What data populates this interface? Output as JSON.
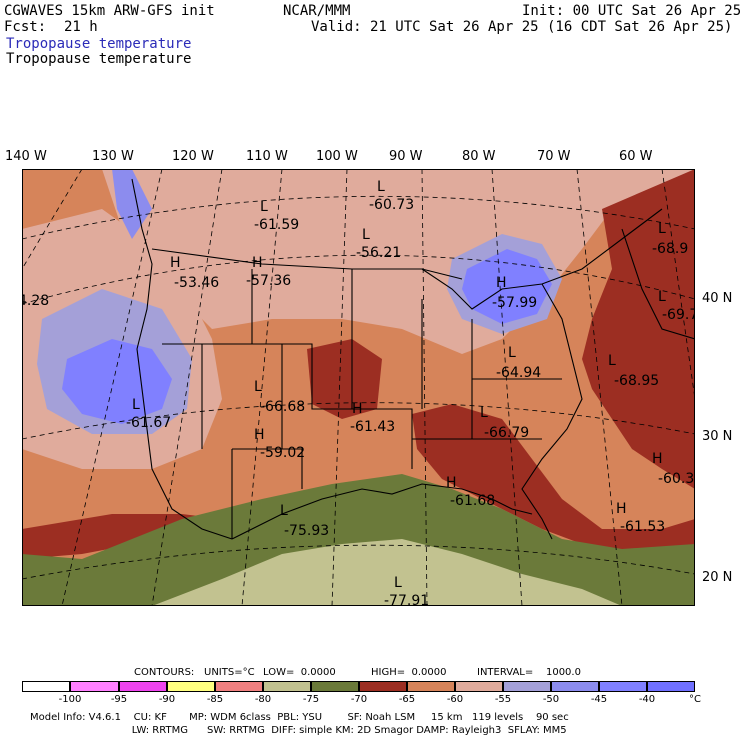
{
  "header": {
    "model": "CGWAVES 15km ARW-GFS init",
    "org": "NCAR/MMM",
    "init": "Init: 00 UTC Sat 26 Apr 25",
    "fcst_label": "Fcst:",
    "fcst_value": "21 h",
    "valid": "Valid: 21 UTC Sat 26 Apr 25 (16 CDT Sat 26 Apr 25)",
    "field_title": "Tropopause temperature",
    "field_subtitle": "Tropopause temperature"
  },
  "longitude_labels": [
    "140 W",
    "130 W",
    "120 W",
    "110 W",
    "100 W",
    "90 W",
    "80 W",
    "70 W",
    "60 W"
  ],
  "latitude_labels": [
    "40 N",
    "30 N",
    "20 N"
  ],
  "map_labels": [
    {
      "type": "L",
      "value": "-61.59"
    },
    {
      "type": "L",
      "value": "-60.73"
    },
    {
      "type": "L",
      "value": "-56.21"
    },
    {
      "type": "H",
      "value": "-53.46"
    },
    {
      "type": "H",
      "value": "-57.36"
    },
    {
      "type": "H",
      "value": "-57.99"
    },
    {
      "type": "L",
      "value": "-68.9"
    },
    {
      "type": "L",
      "value": "-69.7"
    },
    {
      "type": "L",
      "value": "-64.94"
    },
    {
      "type": "L",
      "value": "-68.95"
    },
    {
      "type": "L",
      "value": "-61.67"
    },
    {
      "type": "L",
      "value": "-66.68"
    },
    {
      "type": "H",
      "value": "-61.43"
    },
    {
      "type": "L",
      "value": "-66.79"
    },
    {
      "type": "H",
      "value": "-59.02"
    },
    {
      "type": "H",
      "value": "-60.3"
    },
    {
      "type": "H",
      "value": "-61.68"
    },
    {
      "type": "H",
      "value": "-61.53"
    },
    {
      "type": "L",
      "value": "-75.93"
    },
    {
      "type": "L",
      "value": "-77.91"
    },
    {
      "type": "",
      "value": "4.28"
    }
  ],
  "colors": {
    "lt_m100": "#ffffff",
    "m100_m95": "#ff80ff",
    "m95_m90": "#ee44ee",
    "m90_m85": "#ffff80",
    "m85_m80": "#f08080",
    "m80_m75": "#c2c290",
    "m75_m70": "#6b7a3a",
    "m70_m65": "#9c2e22",
    "m65_m60": "#d6845a",
    "m60_m55": "#e0ab9c",
    "m55_m50": "#a4a0d8",
    "m50_m45": "#8c8cee",
    "m45_m40": "#8080ff",
    "gt_m40": "#7070ff"
  },
  "contours": {
    "label": "CONTOURS:",
    "units": "UNITS=°C",
    "low": "LOW=  0.0000",
    "high": "HIGH=  0.0000",
    "interval": "INTERVAL=    1000.0"
  },
  "colorbar": {
    "tick_labels": [
      "-100",
      "-95",
      "-90",
      "-85",
      "-80",
      "-75",
      "-70",
      "-65",
      "-60",
      "-55",
      "-50",
      "-45",
      "-40"
    ],
    "unit": "°C"
  },
  "footer": {
    "line1": "Model Info: V4.6.1    CU: KF       MP: WDM 6class  PBL: YSU        SF: Noah LSM     15 km   119 levels    90 sec",
    "line2": "          LW: RRTMG      SW: RRTMG  DIFF: simple KM: 2D Smagor DAMP: Rayleigh3  SFLAY: MM5"
  }
}
